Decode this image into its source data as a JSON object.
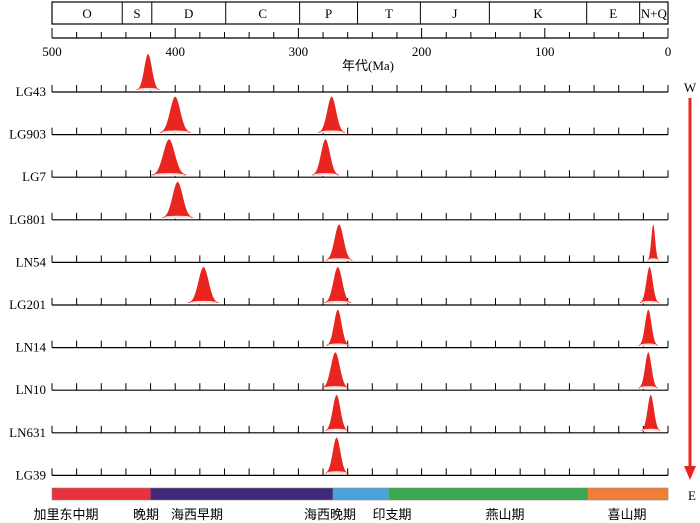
{
  "title": "",
  "xlabel": "年代(Ma)",
  "xlim": [
    500,
    0
  ],
  "x_ticks": [
    500,
    400,
    300,
    200,
    100,
    0
  ],
  "periods": [
    {
      "label": "O",
      "start": 500,
      "end": 443
    },
    {
      "label": "S",
      "start": 443,
      "end": 419
    },
    {
      "label": "D",
      "start": 419,
      "end": 359
    },
    {
      "label": "C",
      "start": 359,
      "end": 299
    },
    {
      "label": "P",
      "start": 299,
      "end": 252
    },
    {
      "label": "T",
      "start": 252,
      "end": 201
    },
    {
      "label": "J",
      "start": 201,
      "end": 145
    },
    {
      "label": "K",
      "start": 145,
      "end": 66
    },
    {
      "label": "E",
      "start": 66,
      "end": 23
    },
    {
      "label": "N+Q",
      "start": 23,
      "end": 0
    }
  ],
  "direction": {
    "top": "W",
    "bottom": "E"
  },
  "samples": [
    {
      "name": "LG43",
      "peaks": [
        {
          "age": 422,
          "width": 6,
          "height": 1.0
        }
      ]
    },
    {
      "name": "LG903",
      "peaks": [
        {
          "age": 400,
          "width": 8,
          "height": 1.0
        },
        {
          "age": 273,
          "width": 7,
          "height": 1.0
        }
      ]
    },
    {
      "name": "LG7",
      "peaks": [
        {
          "age": 405,
          "width": 9,
          "height": 1.0
        },
        {
          "age": 278,
          "width": 7,
          "height": 1.0
        }
      ]
    },
    {
      "name": "LG801",
      "peaks": [
        {
          "age": 398,
          "width": 8,
          "height": 1.0
        }
      ]
    },
    {
      "name": "LN54",
      "peaks": [
        {
          "age": 267,
          "width": 7,
          "height": 1.0
        },
        {
          "age": 12,
          "width": 3,
          "height": 1.0
        }
      ]
    },
    {
      "name": "LG201",
      "peaks": [
        {
          "age": 377,
          "width": 8,
          "height": 1.0
        },
        {
          "age": 268,
          "width": 7,
          "height": 1.0
        },
        {
          "age": 15,
          "width": 5,
          "height": 1.0
        }
      ]
    },
    {
      "name": "LN14",
      "peaks": [
        {
          "age": 268,
          "width": 6,
          "height": 1.0
        },
        {
          "age": 16,
          "width": 5,
          "height": 1.0
        }
      ]
    },
    {
      "name": "LN10",
      "peaks": [
        {
          "age": 270,
          "width": 7,
          "height": 1.0
        },
        {
          "age": 16,
          "width": 5,
          "height": 1.0
        }
      ]
    },
    {
      "name": "LN631",
      "peaks": [
        {
          "age": 269,
          "width": 6,
          "height": 1.0
        },
        {
          "age": 14,
          "width": 5,
          "height": 1.0
        }
      ]
    },
    {
      "name": "LG39",
      "peaks": [
        {
          "age": 269,
          "width": 6,
          "height": 1.0
        }
      ]
    }
  ],
  "orogeny_bar": [
    {
      "label": "加里东中期",
      "start": 500,
      "end": 420,
      "color": "#e8323c"
    },
    {
      "label": "晚期",
      "start": 420,
      "end": 420,
      "color": "#e8323c"
    },
    {
      "label": "海西早期",
      "start": 420,
      "end": 272,
      "color": "#3f2a78"
    },
    {
      "label": "海西晚期",
      "start": 272,
      "end": 272,
      "color": "#3f2a78"
    },
    {
      "label": "印支期",
      "start": 272,
      "end": 227,
      "color": "#4aa3dc"
    },
    {
      "label": "燕山期",
      "start": 227,
      "end": 65,
      "color": "#3aa851"
    },
    {
      "label": "喜山期",
      "start": 65,
      "end": 0,
      "color": "#ef7f36"
    }
  ],
  "colors": {
    "peak": "#e8261f",
    "arrow": "#e8261f"
  }
}
